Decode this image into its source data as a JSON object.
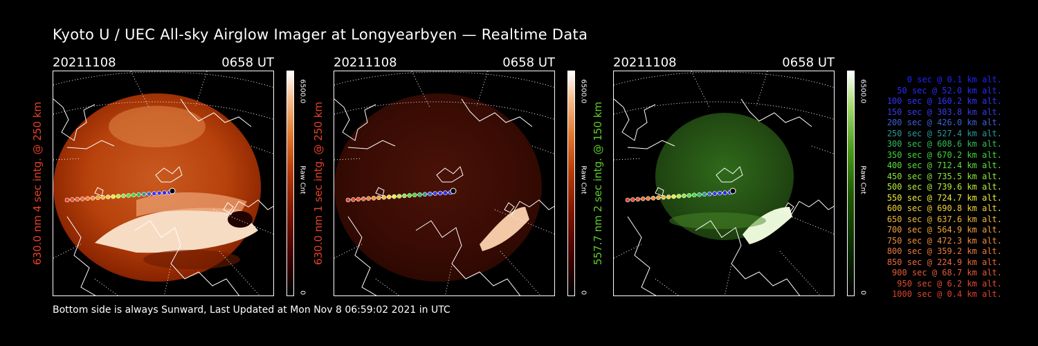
{
  "title": "Kyoto U / UEC All-sky Airglow Imager at Longyearbyen — Realtime Data",
  "footer": "Bottom side is always Sunward, Last Updated at Mon Nov  8 06:59:02 2021 in UTC",
  "panels": [
    {
      "date": "20211108",
      "time": "0658 UT",
      "side_label": "630.0 nm 4 sec intg. @ 250 km",
      "label_color": "#e8412a",
      "cbar_max": "6500.0",
      "cbar_unit": "Raw Cnt",
      "cbar_min": "0",
      "palette": "red",
      "brightness": "high"
    },
    {
      "date": "20211108",
      "time": "0658 UT",
      "side_label": "630.0 nm 1 sec intg. @ 250 km",
      "label_color": "#e8412a",
      "cbar_max": "6500.0",
      "cbar_unit": "Raw Cnt",
      "cbar_min": "0",
      "palette": "red",
      "brightness": "low"
    },
    {
      "date": "20211108",
      "time": "0658 UT",
      "side_label": "557.7 nm 2 sec intg. @ 150 km",
      "label_color": "#5ecf2a",
      "cbar_max": "6500.0",
      "cbar_unit": "Raw Cnt",
      "cbar_min": "0",
      "palette": "green",
      "brightness": "medium"
    }
  ],
  "legend": [
    {
      "text": "0 sec @    0.1 km alt.",
      "color": "#2222ff"
    },
    {
      "text": "50 sec @   52.0 km alt.",
      "color": "#2a2aff"
    },
    {
      "text": "100 sec @  160.2 km alt.",
      "color": "#3333ff"
    },
    {
      "text": "150 sec @  303.8 km alt.",
      "color": "#3a3aee"
    },
    {
      "text": "200 sec @  426.0 km alt.",
      "color": "#3f5fd8"
    },
    {
      "text": "250 sec @  527.4 km alt.",
      "color": "#2a9a9a"
    },
    {
      "text": "300 sec @  608.6 km alt.",
      "color": "#2fbf5a"
    },
    {
      "text": "350 sec @  670.2 km alt.",
      "color": "#3fd83a"
    },
    {
      "text": "400 sec @  712.4 km alt.",
      "color": "#5ae03a"
    },
    {
      "text": "450 sec @  735.5 km alt.",
      "color": "#8ae83a"
    },
    {
      "text": "500 sec @  739.6 km alt.",
      "color": "#b8ee3a"
    },
    {
      "text": "550 sec @  724.7 km alt.",
      "color": "#e8ee3a"
    },
    {
      "text": "600 sec @  690.8 km alt.",
      "color": "#f2d23a"
    },
    {
      "text": "650 sec @  637.6 km alt.",
      "color": "#f2b83a"
    },
    {
      "text": "700 sec @  564.9 km alt.",
      "color": "#f2a23a"
    },
    {
      "text": "750 sec @  472.3 km alt.",
      "color": "#f28c3a"
    },
    {
      "text": "800 sec @  359.2 km alt.",
      "color": "#ee7a3a"
    },
    {
      "text": "850 sec @  224.9 km alt.",
      "color": "#ea6a3a"
    },
    {
      "text": "900 sec @   68.7 km alt.",
      "color": "#e65a36"
    },
    {
      "text": "950 sec @    6.2 km alt.",
      "color": "#e24c32"
    },
    {
      "text": "1000 sec @    0.4 km alt.",
      "color": "#de402e"
    }
  ]
}
